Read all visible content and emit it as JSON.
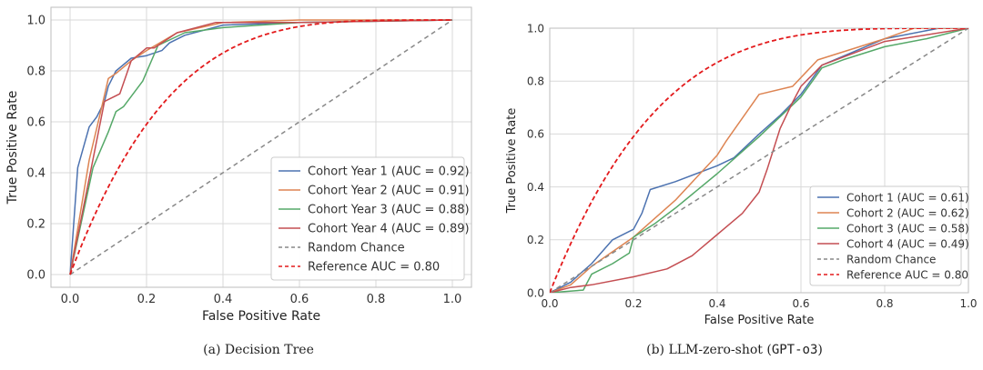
{
  "chart_data": [
    {
      "type": "line",
      "caption": "(a) Decision Tree",
      "xlabel": "False Positive Rate",
      "ylabel": "True Positive Rate",
      "xlim": [
        -0.05,
        1.05
      ],
      "ylim": [
        -0.05,
        1.05
      ],
      "xticks": [
        "0.0",
        "0.2",
        "0.4",
        "0.6",
        "0.8",
        "1.0"
      ],
      "yticks": [
        "0.0",
        "0.2",
        "0.4",
        "0.6",
        "0.8",
        "1.0"
      ],
      "grid": true,
      "legend_position": "bottom-right",
      "series": [
        {
          "name": "Cohort Year 1 (AUC = 0.92)",
          "color": "#4c72b0",
          "style": "solid",
          "x": [
            0,
            0.02,
            0.05,
            0.07,
            0.09,
            0.1,
            0.12,
            0.16,
            0.2,
            0.24,
            0.26,
            0.3,
            0.4,
            0.6,
            1.0
          ],
          "y": [
            0,
            0.42,
            0.58,
            0.62,
            0.68,
            0.74,
            0.8,
            0.85,
            0.86,
            0.88,
            0.91,
            0.94,
            0.98,
            0.99,
            1.0
          ]
        },
        {
          "name": "Cohort Year 2 (AUC = 0.91)",
          "color": "#dd8452",
          "style": "solid",
          "x": [
            0,
            0.05,
            0.08,
            0.1,
            0.12,
            0.16,
            0.2,
            0.28,
            0.4,
            0.6,
            1.0
          ],
          "y": [
            0,
            0.45,
            0.64,
            0.77,
            0.79,
            0.84,
            0.88,
            0.95,
            0.99,
            1.0,
            1.0
          ]
        },
        {
          "name": "Cohort Year 3 (AUC = 0.88)",
          "color": "#55a868",
          "style": "solid",
          "x": [
            0,
            0.06,
            0.1,
            0.12,
            0.14,
            0.19,
            0.23,
            0.3,
            0.4,
            0.6,
            1.0
          ],
          "y": [
            0,
            0.42,
            0.56,
            0.64,
            0.66,
            0.76,
            0.9,
            0.95,
            0.97,
            0.99,
            1.0
          ]
        },
        {
          "name": "Cohort Year 4 (AUC = 0.89)",
          "color": "#c44e52",
          "style": "solid",
          "x": [
            0,
            0.09,
            0.13,
            0.16,
            0.2,
            0.22,
            0.28,
            0.38,
            0.6,
            1.0
          ],
          "y": [
            0,
            0.68,
            0.71,
            0.84,
            0.89,
            0.89,
            0.95,
            0.99,
            0.99,
            1.0
          ]
        },
        {
          "name": "Random Chance",
          "color": "#888888",
          "style": "dashed",
          "x": [
            0,
            1
          ],
          "y": [
            0,
            1
          ]
        },
        {
          "name": "Reference AUC = 0.80",
          "color": "#e31a1c",
          "style": "dashed",
          "function": "tpr = 1 - (1 - fpr)^4"
        }
      ]
    },
    {
      "type": "line",
      "caption_prefix": "(b) LLM-zero-shot (",
      "caption_model": "GPT-o3",
      "caption_suffix": ")",
      "xlabel": "False Positive Rate",
      "ylabel": "True Positive Rate",
      "xlim": [
        0,
        1.0
      ],
      "ylim": [
        0,
        1.0
      ],
      "xticks": [
        "0.0",
        "0.2",
        "0.4",
        "0.6",
        "0.8",
        "1.0"
      ],
      "yticks": [
        "0.0",
        "0.2",
        "0.4",
        "0.6",
        "0.8",
        "1.0"
      ],
      "grid": true,
      "legend_position": "bottom-right",
      "series": [
        {
          "name": "Cohort 1 (AUC = 0.61)",
          "color": "#4c72b0",
          "style": "solid",
          "x": [
            0,
            0.05,
            0.1,
            0.15,
            0.2,
            0.22,
            0.24,
            0.3,
            0.4,
            0.44,
            0.5,
            0.55,
            0.6,
            0.65,
            0.8,
            0.93,
            1.0
          ],
          "y": [
            0,
            0.04,
            0.11,
            0.2,
            0.24,
            0.3,
            0.39,
            0.42,
            0.48,
            0.51,
            0.6,
            0.67,
            0.75,
            0.86,
            0.96,
            1.0,
            1.0
          ]
        },
        {
          "name": "Cohort 2 (AUC = 0.62)",
          "color": "#dd8452",
          "style": "solid",
          "x": [
            0,
            0.05,
            0.1,
            0.2,
            0.3,
            0.4,
            0.42,
            0.5,
            0.58,
            0.64,
            0.8,
            0.87,
            1.0
          ],
          "y": [
            0,
            0.03,
            0.1,
            0.21,
            0.35,
            0.52,
            0.57,
            0.75,
            0.78,
            0.88,
            0.96,
            1.0,
            1.0
          ]
        },
        {
          "name": "Cohort 3 (AUC = 0.58)",
          "color": "#55a868",
          "style": "solid",
          "x": [
            0,
            0.08,
            0.1,
            0.15,
            0.19,
            0.2,
            0.25,
            0.3,
            0.4,
            0.5,
            0.6,
            0.65,
            0.7,
            0.8,
            0.9,
            1.0
          ],
          "y": [
            0,
            0.01,
            0.07,
            0.11,
            0.15,
            0.21,
            0.26,
            0.32,
            0.45,
            0.59,
            0.74,
            0.85,
            0.88,
            0.93,
            0.96,
            1.0
          ]
        },
        {
          "name": "Cohort 4 (AUC = 0.49)",
          "color": "#c44e52",
          "style": "solid",
          "x": [
            0,
            0.05,
            0.1,
            0.2,
            0.28,
            0.34,
            0.4,
            0.46,
            0.5,
            0.52,
            0.55,
            0.58,
            0.6,
            0.65,
            0.8,
            1.0
          ],
          "y": [
            0,
            0.02,
            0.03,
            0.06,
            0.09,
            0.14,
            0.22,
            0.3,
            0.38,
            0.47,
            0.62,
            0.72,
            0.78,
            0.86,
            0.95,
            1.0
          ]
        },
        {
          "name": "Random Chance",
          "color": "#888888",
          "style": "dashed",
          "x": [
            0,
            1
          ],
          "y": [
            0,
            1
          ]
        },
        {
          "name": "Reference AUC = 0.80",
          "color": "#e31a1c",
          "style": "dashed",
          "function": "tpr = 1 - (1 - fpr)^4"
        }
      ]
    }
  ]
}
